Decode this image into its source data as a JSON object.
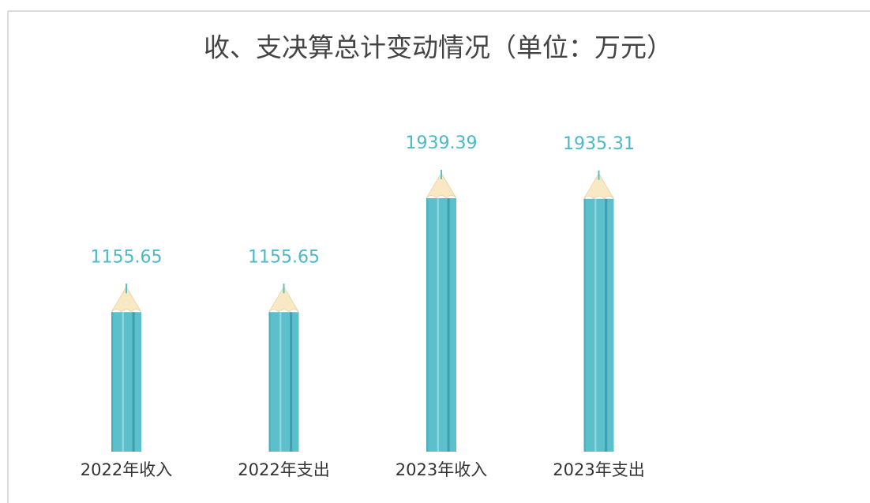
{
  "chart_data": {
    "type": "bar",
    "title": "收、支决算总计变动情况（单位：万元）",
    "categories": [
      "2022年收入",
      "2022年支出",
      "2023年收入",
      "2023年支出"
    ],
    "values": [
      1155.65,
      1155.65,
      1939.39,
      1935.31
    ],
    "color": "#5bbfcc"
  }
}
